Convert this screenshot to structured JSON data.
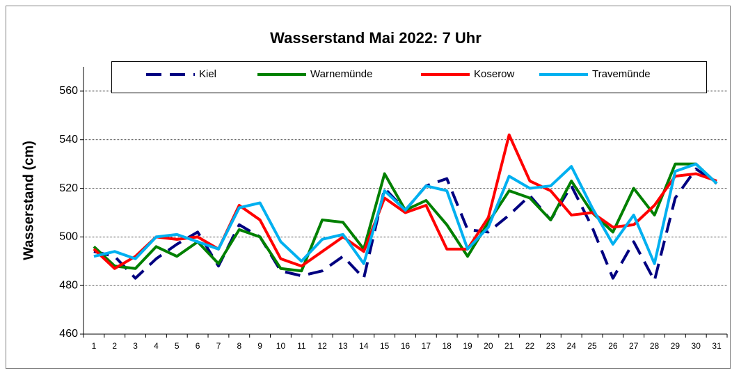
{
  "chart_data": {
    "type": "line",
    "title": "Wasserstand Mai 2022: 7 Uhr",
    "y_label": "Wasserstand (cm)",
    "categories": [
      "1",
      "2",
      "3",
      "4",
      "5",
      "6",
      "7",
      "8",
      "9",
      "10",
      "11",
      "12",
      "13",
      "14",
      "15",
      "16",
      "17",
      "18",
      "19",
      "20",
      "21",
      "22",
      "23",
      "24",
      "25",
      "26",
      "27",
      "28",
      "29",
      "30",
      "31"
    ],
    "series": [
      {
        "name": "Kiel",
        "color": "#000080",
        "dashed": true,
        "values": [
          494,
          492,
          483,
          491,
          497,
          502,
          488,
          505,
          500,
          486,
          484,
          486,
          492,
          483,
          520,
          511,
          521,
          524,
          503,
          502,
          509,
          517,
          507,
          521,
          504,
          483,
          498,
          482,
          516,
          528,
          522
        ]
      },
      {
        "name": "Warnemünde",
        "color": "#008000",
        "values": [
          496,
          488,
          487,
          496,
          492,
          498,
          489,
          503,
          500,
          487,
          486,
          507,
          506,
          495,
          526,
          511,
          515,
          505,
          492,
          506,
          519,
          516,
          507,
          523,
          510,
          502,
          520,
          509,
          530,
          530,
          522
        ]
      },
      {
        "name": "Koserow",
        "color": "#ff0000",
        "values": [
          495,
          487,
          492,
          500,
          499,
          500,
          495,
          513,
          507,
          491,
          488,
          494,
          500,
          494,
          516,
          510,
          513,
          495,
          495,
          508,
          542,
          523,
          519,
          509,
          510,
          504,
          505,
          513,
          525,
          526,
          523
        ]
      },
      {
        "name": "Travemünde",
        "color": "#00b0f0",
        "values": [
          492,
          494,
          491,
          500,
          501,
          498,
          495,
          512,
          514,
          498,
          490,
          499,
          501,
          489,
          519,
          511,
          521,
          519,
          495,
          504,
          525,
          520,
          521,
          529,
          512,
          497,
          509,
          489,
          527,
          530,
          522
        ]
      }
    ],
    "ylim": [
      460,
      570
    ],
    "yticks": [
      460,
      480,
      500,
      520,
      540,
      560
    ],
    "grid": true
  }
}
